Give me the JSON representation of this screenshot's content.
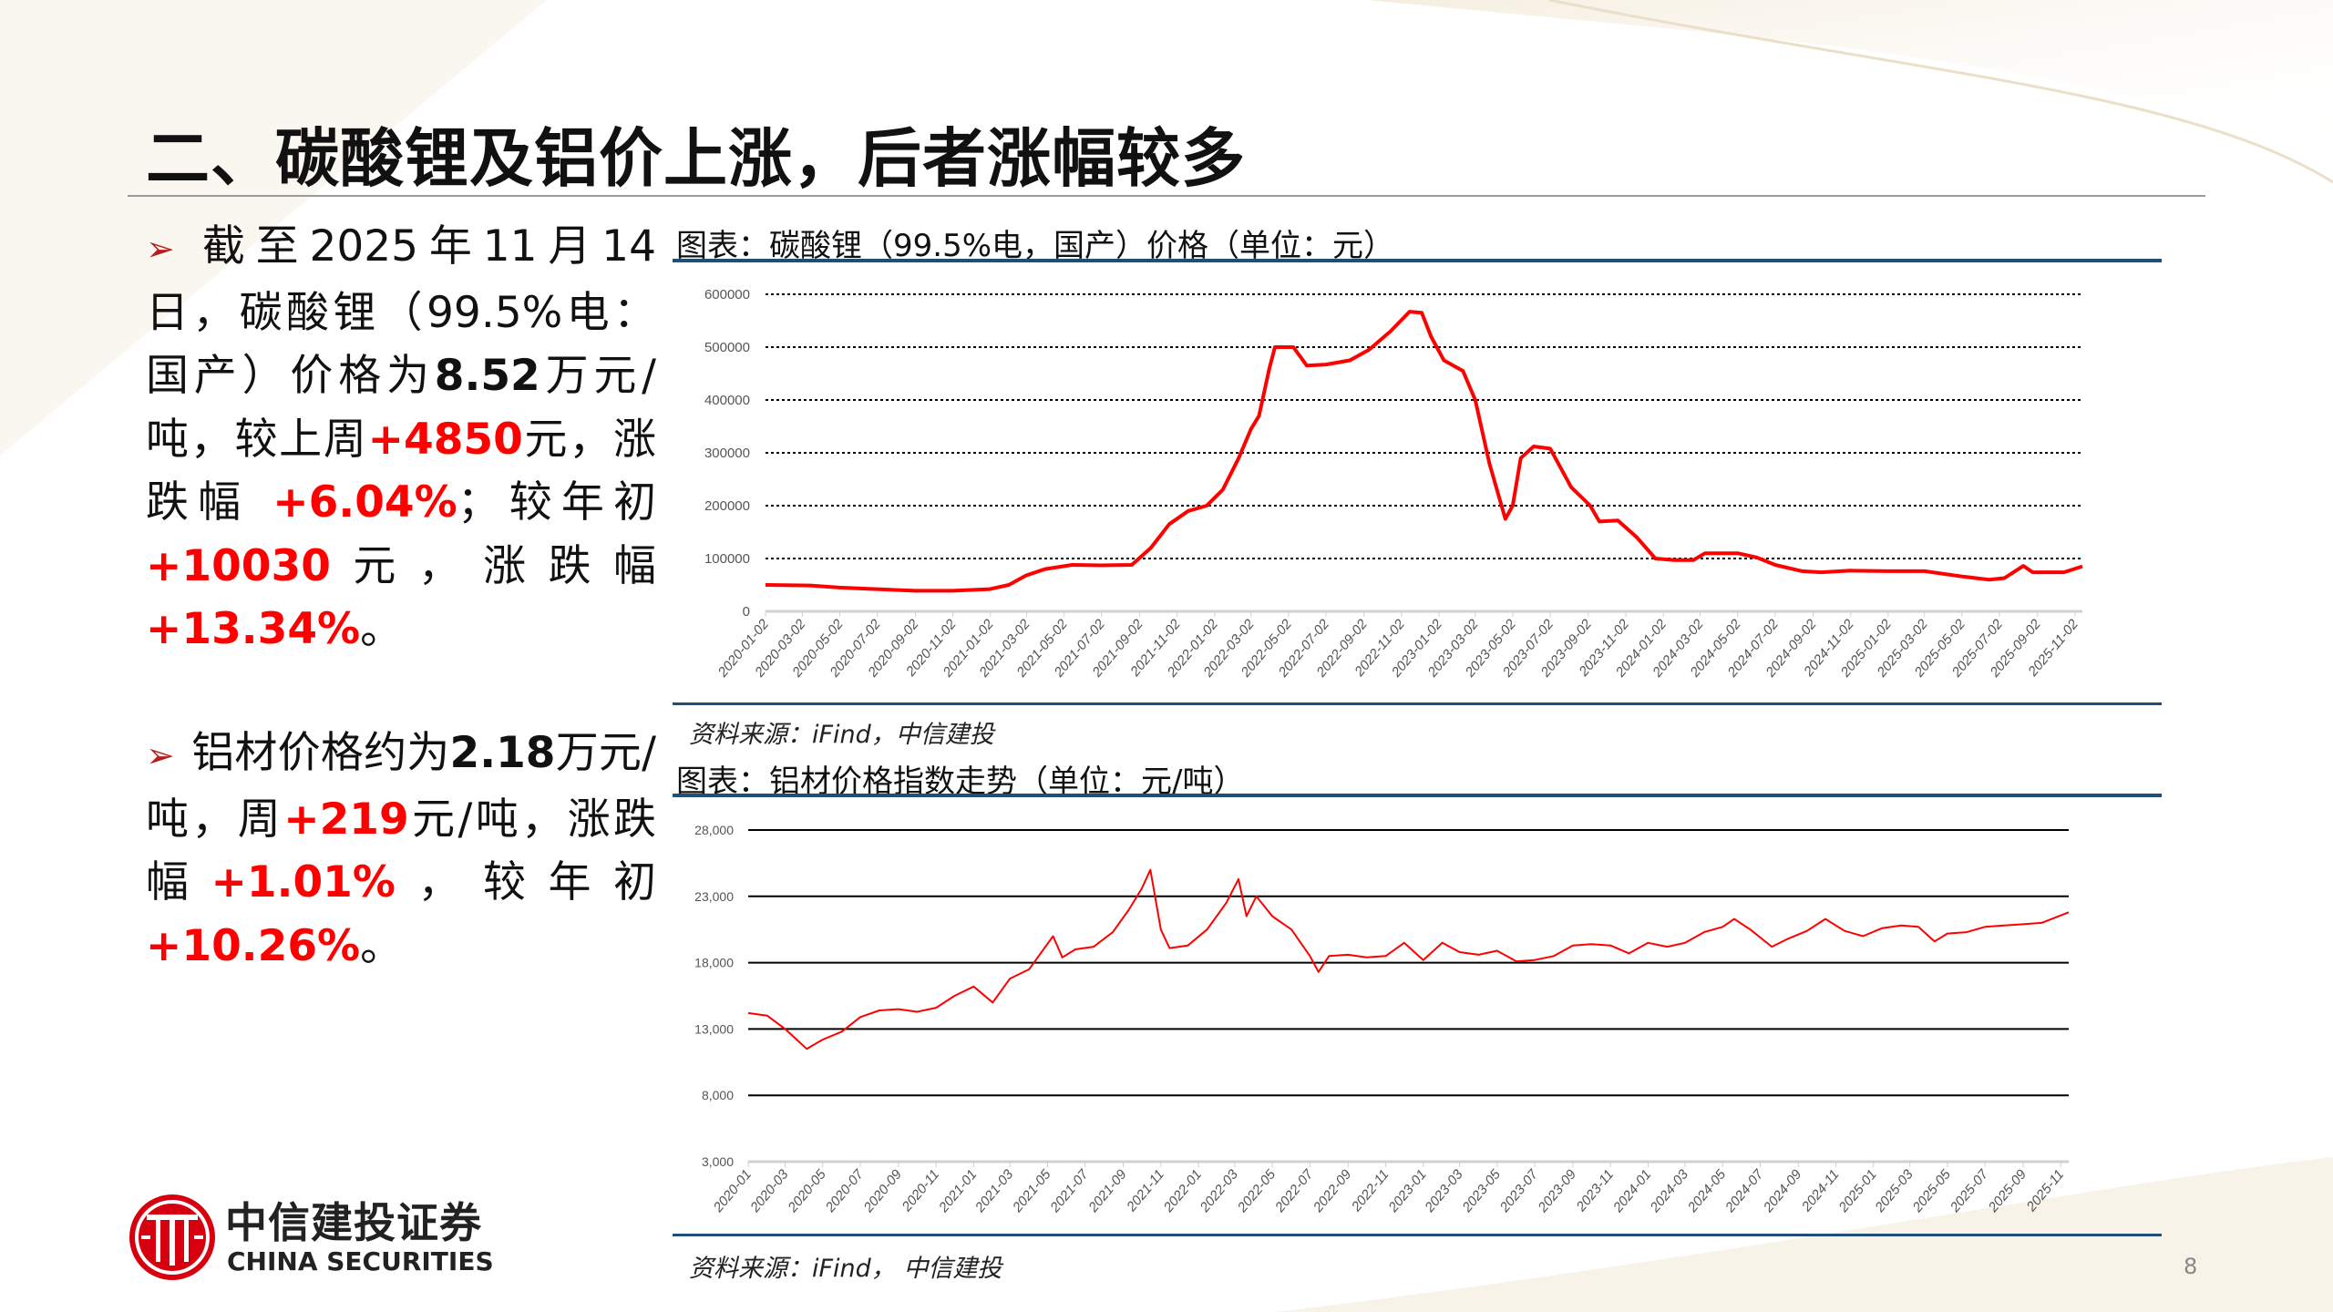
{
  "title": "二、碳酸锂及铝价上涨，后者涨幅较多",
  "bullets": [
    {
      "segments": [
        {
          "text": "截至2025年11月14日，碳酸锂（99.5%电：国产）价格为",
          "style": "normal"
        },
        {
          "text": "8.52",
          "style": "bold"
        },
        {
          "text": "万元/吨，较上周",
          "style": "normal"
        },
        {
          "text": "+4850",
          "style": "red"
        },
        {
          "text": "元，涨跌幅 ",
          "style": "normal"
        },
        {
          "text": "+6.04%",
          "style": "red"
        },
        {
          "text": "；较年初",
          "style": "normal"
        },
        {
          "text": "+10030",
          "style": "red"
        },
        {
          "text": "元，涨跌幅",
          "style": "normal"
        },
        {
          "text": "+13.34%",
          "style": "red"
        },
        {
          "text": "。",
          "style": "normal"
        }
      ]
    },
    {
      "segments": [
        {
          "text": "铝材价格约为",
          "style": "normal"
        },
        {
          "text": "2.18",
          "style": "bold"
        },
        {
          "text": "万元/吨，周",
          "style": "normal"
        },
        {
          "text": "+219",
          "style": "red"
        },
        {
          "text": "元/吨，涨跌幅",
          "style": "normal"
        },
        {
          "text": "+1.01%",
          "style": "red"
        },
        {
          "text": "，较年初",
          "style": "normal"
        },
        {
          "text": "+10.26%",
          "style": "red"
        },
        {
          "text": "。",
          "style": "normal"
        }
      ]
    }
  ],
  "bullet_icon": "arrowhead-bullet-icon",
  "charts": {
    "lithium": {
      "heading": "图表：碳酸锂（99.5%电，国产）价格（单位：元）",
      "source": "资料来源：iFind，中信建投"
    },
    "aluminum": {
      "heading": "图表：铝材价格指数走势（单位：元/吨）",
      "source": "资料来源：iFind， 中信建投"
    }
  },
  "chart_data": [
    {
      "type": "line",
      "title": "",
      "ylim": [
        0,
        600000
      ],
      "yticks": [
        "0",
        "100000",
        "200000",
        "300000",
        "400000",
        "500000",
        "600000"
      ],
      "grid": "dotted horizontal",
      "color": "#ff0000",
      "xlim": [
        "2020-01-02",
        "2025-11-14"
      ],
      "xticks": [
        "2020-01-02",
        "2020-03-02",
        "2020-05-02",
        "2020-07-02",
        "2020-09-02",
        "2020-11-02",
        "2021-01-02",
        "2021-03-02",
        "2021-05-02",
        "2021-07-02",
        "2021-09-02",
        "2021-11-02",
        "2022-01-02",
        "2022-03-02",
        "2022-05-02",
        "2022-07-02",
        "2022-09-02",
        "2022-11-02",
        "2023-01-02",
        "2023-03-02",
        "2023-05-02",
        "2023-07-02",
        "2023-09-02",
        "2023-11-02",
        "2024-01-02",
        "2024-03-02",
        "2024-05-02",
        "2024-07-02",
        "2024-09-02",
        "2024-11-02",
        "2025-01-02",
        "2025-03-02",
        "2025-05-02",
        "2025-07-02",
        "2025-09-02",
        "2025-11-02"
      ],
      "points": [
        [
          "2020-01-02",
          50000
        ],
        [
          "2020-03-15",
          49000
        ],
        [
          "2020-05-01",
          45000
        ],
        [
          "2020-07-01",
          42000
        ],
        [
          "2020-09-01",
          39000
        ],
        [
          "2020-11-01",
          39000
        ],
        [
          "2021-01-01",
          42000
        ],
        [
          "2021-02-01",
          50000
        ],
        [
          "2021-03-01",
          68000
        ],
        [
          "2021-04-01",
          80000
        ],
        [
          "2021-05-15",
          88000
        ],
        [
          "2021-07-01",
          87000
        ],
        [
          "2021-08-20",
          88000
        ],
        [
          "2021-09-20",
          120000
        ],
        [
          "2021-10-20",
          165000
        ],
        [
          "2021-11-20",
          190000
        ],
        [
          "2021-12-20",
          200000
        ],
        [
          "2022-01-15",
          230000
        ],
        [
          "2022-02-10",
          290000
        ],
        [
          "2022-03-02",
          345000
        ],
        [
          "2022-03-15",
          370000
        ],
        [
          "2022-04-01",
          460000
        ],
        [
          "2022-04-10",
          500000
        ],
        [
          "2022-05-10",
          500000
        ],
        [
          "2022-06-01",
          465000
        ],
        [
          "2022-07-02",
          467000
        ],
        [
          "2022-08-10",
          475000
        ],
        [
          "2022-09-10",
          495000
        ],
        [
          "2022-10-15",
          530000
        ],
        [
          "2022-11-15",
          567000
        ],
        [
          "2022-12-05",
          565000
        ],
        [
          "2022-12-20",
          520000
        ],
        [
          "2023-01-10",
          475000
        ],
        [
          "2023-02-10",
          455000
        ],
        [
          "2023-03-02",
          400000
        ],
        [
          "2023-03-25",
          280000
        ],
        [
          "2023-04-20",
          175000
        ],
        [
          "2023-05-02",
          200000
        ],
        [
          "2023-05-15",
          290000
        ],
        [
          "2023-06-05",
          312000
        ],
        [
          "2023-07-02",
          308000
        ],
        [
          "2023-08-05",
          235000
        ],
        [
          "2023-09-05",
          200000
        ],
        [
          "2023-09-20",
          170000
        ],
        [
          "2023-10-20",
          172000
        ],
        [
          "2023-11-20",
          140000
        ],
        [
          "2023-12-20",
          100000
        ],
        [
          "2024-01-20",
          97000
        ],
        [
          "2024-02-20",
          97000
        ],
        [
          "2024-03-10",
          110000
        ],
        [
          "2024-05-02",
          110000
        ],
        [
          "2024-06-02",
          102000
        ],
        [
          "2024-07-02",
          88000
        ],
        [
          "2024-08-15",
          76000
        ],
        [
          "2024-09-15",
          74000
        ],
        [
          "2024-11-02",
          77000
        ],
        [
          "2025-01-02",
          76000
        ],
        [
          "2025-03-02",
          76000
        ],
        [
          "2025-05-02",
          66000
        ],
        [
          "2025-06-15",
          60000
        ],
        [
          "2025-07-10",
          63000
        ],
        [
          "2025-08-10",
          86000
        ],
        [
          "2025-08-25",
          74000
        ],
        [
          "2025-10-15",
          74000
        ],
        [
          "2025-11-14",
          85200
        ]
      ]
    },
    {
      "type": "line",
      "title": "",
      "ylim": [
        3000,
        28000
      ],
      "yticks": [
        "3,000",
        "8,000",
        "13,000",
        "18,000",
        "23,000",
        "28,000"
      ],
      "grid": "solid horizontal",
      "color": "#ff0000",
      "xlim": [
        "2020-01-01",
        "2025-11-14"
      ],
      "xticks": [
        "2020-01",
        "2020-03",
        "2020-05",
        "2020-07",
        "2020-09",
        "2020-11",
        "2021-01",
        "2021-03",
        "2021-05",
        "2021-07",
        "2021-09",
        "2021-11",
        "2022-01",
        "2022-03",
        "2022-05",
        "2022-07",
        "2022-09",
        "2022-11",
        "2023-01",
        "2023-03",
        "2023-05",
        "2023-07",
        "2023-09",
        "2023-11",
        "2024-01",
        "2024-03",
        "2024-05",
        "2024-07",
        "2024-09",
        "2024-11",
        "2025-01",
        "2025-03",
        "2025-05",
        "2025-07",
        "2025-09",
        "2025-11"
      ],
      "points": [
        [
          "2020-01-01",
          14200
        ],
        [
          "2020-02-01",
          14000
        ],
        [
          "2020-03-01",
          13000
        ],
        [
          "2020-04-05",
          11500
        ],
        [
          "2020-05-01",
          12200
        ],
        [
          "2020-06-01",
          12800
        ],
        [
          "2020-07-01",
          13900
        ],
        [
          "2020-08-01",
          14400
        ],
        [
          "2020-09-01",
          14500
        ],
        [
          "2020-10-01",
          14300
        ],
        [
          "2020-11-01",
          14600
        ],
        [
          "2020-12-01",
          15500
        ],
        [
          "2021-01-01",
          16200
        ],
        [
          "2021-02-01",
          15000
        ],
        [
          "2021-03-01",
          16800
        ],
        [
          "2021-04-01",
          17500
        ],
        [
          "2021-05-10",
          20000
        ],
        [
          "2021-05-25",
          18400
        ],
        [
          "2021-06-15",
          19000
        ],
        [
          "2021-07-15",
          19200
        ],
        [
          "2021-08-15",
          20300
        ],
        [
          "2021-09-10",
          22000
        ],
        [
          "2021-10-01",
          23600
        ],
        [
          "2021-10-15",
          25000
        ],
        [
          "2021-11-01",
          20500
        ],
        [
          "2021-11-15",
          19100
        ],
        [
          "2021-12-15",
          19300
        ],
        [
          "2022-01-15",
          20500
        ],
        [
          "2022-02-15",
          22500
        ],
        [
          "2022-03-07",
          24300
        ],
        [
          "2022-03-20",
          21500
        ],
        [
          "2022-04-05",
          23000
        ],
        [
          "2022-05-01",
          21500
        ],
        [
          "2022-06-01",
          20500
        ],
        [
          "2022-07-01",
          18500
        ],
        [
          "2022-07-15",
          17300
        ],
        [
          "2022-08-01",
          18500
        ],
        [
          "2022-09-01",
          18600
        ],
        [
          "2022-10-01",
          18400
        ],
        [
          "2022-11-01",
          18500
        ],
        [
          "2022-12-01",
          19500
        ],
        [
          "2023-01-01",
          18200
        ],
        [
          "2023-02-01",
          19500
        ],
        [
          "2023-03-01",
          18800
        ],
        [
          "2023-04-01",
          18600
        ],
        [
          "2023-05-01",
          18900
        ],
        [
          "2023-06-01",
          18100
        ],
        [
          "2023-07-01",
          18200
        ],
        [
          "2023-08-01",
          18500
        ],
        [
          "2023-09-01",
          19300
        ],
        [
          "2023-10-01",
          19400
        ],
        [
          "2023-11-01",
          19300
        ],
        [
          "2023-12-01",
          18700
        ],
        [
          "2024-01-01",
          19500
        ],
        [
          "2024-02-01",
          19200
        ],
        [
          "2024-03-01",
          19500
        ],
        [
          "2024-04-01",
          20300
        ],
        [
          "2024-05-01",
          20700
        ],
        [
          "2024-05-20",
          21300
        ],
        [
          "2024-06-15",
          20500
        ],
        [
          "2024-07-20",
          19200
        ],
        [
          "2024-08-15",
          19800
        ],
        [
          "2024-09-15",
          20400
        ],
        [
          "2024-10-15",
          21300
        ],
        [
          "2024-11-15",
          20400
        ],
        [
          "2024-12-15",
          20000
        ],
        [
          "2025-01-15",
          20600
        ],
        [
          "2025-02-15",
          20800
        ],
        [
          "2025-03-15",
          20700
        ],
        [
          "2025-04-10",
          19600
        ],
        [
          "2025-05-01",
          20200
        ],
        [
          "2025-06-01",
          20300
        ],
        [
          "2025-07-01",
          20700
        ],
        [
          "2025-08-01",
          20800
        ],
        [
          "2025-09-01",
          20900
        ],
        [
          "2025-10-01",
          21000
        ],
        [
          "2025-11-14",
          21800
        ]
      ]
    }
  ],
  "logo": {
    "cn": "中信建投证券",
    "en": "CHINA SECURITIES"
  },
  "page_number": "8"
}
